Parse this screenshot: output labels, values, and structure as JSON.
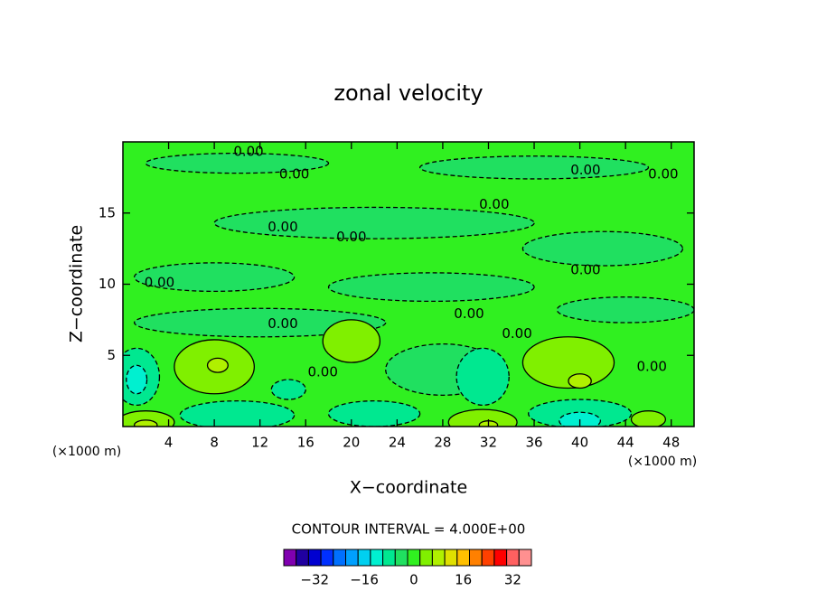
{
  "chart_data": {
    "type": "contour",
    "title": "zonal velocity",
    "x_label": "X−coordinate",
    "y_label": "Z−coordinate",
    "x_unit_left": "(×1000 m)",
    "x_unit_right": "(×1000 m)",
    "xlim": [
      0,
      50
    ],
    "ylim": [
      0,
      20
    ],
    "xticks": [
      4,
      8,
      12,
      16,
      20,
      24,
      28,
      32,
      36,
      40,
      44,
      48
    ],
    "yticks": [
      5,
      10,
      15
    ],
    "contour_interval_text": "CONTOUR INTERVAL = 4.000E+00",
    "background_value": 2,
    "colorbar": {
      "bounds": [
        -40,
        40
      ],
      "step": 4,
      "colors": [
        "#8000b0",
        "#2000a0",
        "#0000d0",
        "#0030ff",
        "#0070ff",
        "#00a0ff",
        "#00d0f0",
        "#00f0d0",
        "#00e890",
        "#20e060",
        "#30f020",
        "#80f000",
        "#b0f000",
        "#e0e000",
        "#ffc000",
        "#ff8000",
        "#ff4000",
        "#ff0000",
        "#ff6060",
        "#ff9090"
      ],
      "ticks": [
        {
          "value": -32,
          "label": "−32"
        },
        {
          "value": -16,
          "label": "−16"
        },
        0,
        16,
        32
      ]
    },
    "features": [
      {
        "value": -2,
        "x": 10,
        "y": 18.5,
        "rx": 8,
        "ry": 0.7
      },
      {
        "value": -2,
        "x": 36,
        "y": 18.2,
        "rx": 10,
        "ry": 0.8
      },
      {
        "value": -2,
        "x": 22,
        "y": 14.3,
        "rx": 14,
        "ry": 1.1
      },
      {
        "value": -2,
        "x": 42,
        "y": 12.5,
        "rx": 7,
        "ry": 1.2
      },
      {
        "value": -2,
        "x": 8,
        "y": 10.5,
        "rx": 7,
        "ry": 1.0
      },
      {
        "value": -2,
        "x": 27,
        "y": 9.8,
        "rx": 9,
        "ry": 1.0
      },
      {
        "value": -2,
        "x": 12,
        "y": 7.3,
        "rx": 11,
        "ry": 1.0
      },
      {
        "value": -2,
        "x": 44,
        "y": 8.2,
        "rx": 6,
        "ry": 0.9
      },
      {
        "value": -2,
        "x": 28,
        "y": 4.0,
        "rx": 5,
        "ry": 1.8
      },
      {
        "value": 6,
        "x": 8,
        "y": 4.2,
        "rx": 3.5,
        "ry": 1.9
      },
      {
        "value": 9,
        "x": 8.3,
        "y": 4.3,
        "rx": 0.9,
        "ry": 0.5
      },
      {
        "value": 6,
        "x": 20,
        "y": 6.0,
        "rx": 2.5,
        "ry": 1.5
      },
      {
        "value": 6,
        "x": 39,
        "y": 4.5,
        "rx": 4,
        "ry": 1.8
      },
      {
        "value": 9,
        "x": 40,
        "y": 3.2,
        "rx": 1.0,
        "ry": 0.5
      },
      {
        "value": -6,
        "x": 10,
        "y": 0.8,
        "rx": 5,
        "ry": 1.0
      },
      {
        "value": -6,
        "x": 14.5,
        "y": 2.6,
        "rx": 1.5,
        "ry": 0.7
      },
      {
        "value": -6,
        "x": 22,
        "y": 0.9,
        "rx": 4,
        "ry": 0.9
      },
      {
        "value": -6,
        "x": 31.5,
        "y": 3.5,
        "rx": 2.3,
        "ry": 2.0
      },
      {
        "value": -6,
        "x": 40,
        "y": 0.9,
        "rx": 4.5,
        "ry": 1.0
      },
      {
        "value": -10,
        "x": 40,
        "y": 0.4,
        "rx": 1.8,
        "ry": 0.6
      },
      {
        "value": -6,
        "x": 1.2,
        "y": 3.5,
        "rx": 2,
        "ry": 2
      },
      {
        "value": -10,
        "x": 1.2,
        "y": 3.3,
        "rx": 0.9,
        "ry": 1.0
      },
      {
        "value": 6,
        "x": 2,
        "y": 0.3,
        "rx": 2.5,
        "ry": 0.8
      },
      {
        "value": 9,
        "x": 2,
        "y": 0.1,
        "rx": 1.0,
        "ry": 0.35
      },
      {
        "value": 6,
        "x": 31.5,
        "y": 0.3,
        "rx": 3,
        "ry": 0.9
      },
      {
        "value": 9,
        "x": 32,
        "y": 0.1,
        "rx": 0.8,
        "ry": 0.3
      },
      {
        "value": 6,
        "x": 46,
        "y": 0.5,
        "rx": 1.5,
        "ry": 0.6
      }
    ],
    "contour_labels": [
      {
        "value": 0,
        "label": "0.00",
        "x": 11,
        "y": 19.3
      },
      {
        "value": 0,
        "label": "0.00",
        "x": 15,
        "y": 17.7
      },
      {
        "value": 0,
        "label": "0.00",
        "x": 40.5,
        "y": 18.0
      },
      {
        "value": 0,
        "label": "0.00",
        "x": 47.3,
        "y": 17.7
      },
      {
        "value": 0,
        "label": "0.00",
        "x": 32.5,
        "y": 15.6
      },
      {
        "value": 0,
        "label": "0.00",
        "x": 14,
        "y": 14.0
      },
      {
        "value": 0,
        "label": "0.00",
        "x": 20,
        "y": 13.3
      },
      {
        "value": 0,
        "label": "0.00",
        "x": 40.5,
        "y": 11.0
      },
      {
        "value": 0,
        "label": "0.00",
        "x": 3.2,
        "y": 10.1
      },
      {
        "value": 0,
        "label": "0.00",
        "x": 14,
        "y": 7.2
      },
      {
        "value": 0,
        "label": "0.00",
        "x": 30.3,
        "y": 7.9
      },
      {
        "value": 0,
        "label": "0.00",
        "x": 34.5,
        "y": 6.5
      },
      {
        "value": 0,
        "label": "0.00",
        "x": 17.5,
        "y": 3.8
      },
      {
        "value": 0,
        "label": "0.00",
        "x": 46.3,
        "y": 4.2
      }
    ]
  }
}
